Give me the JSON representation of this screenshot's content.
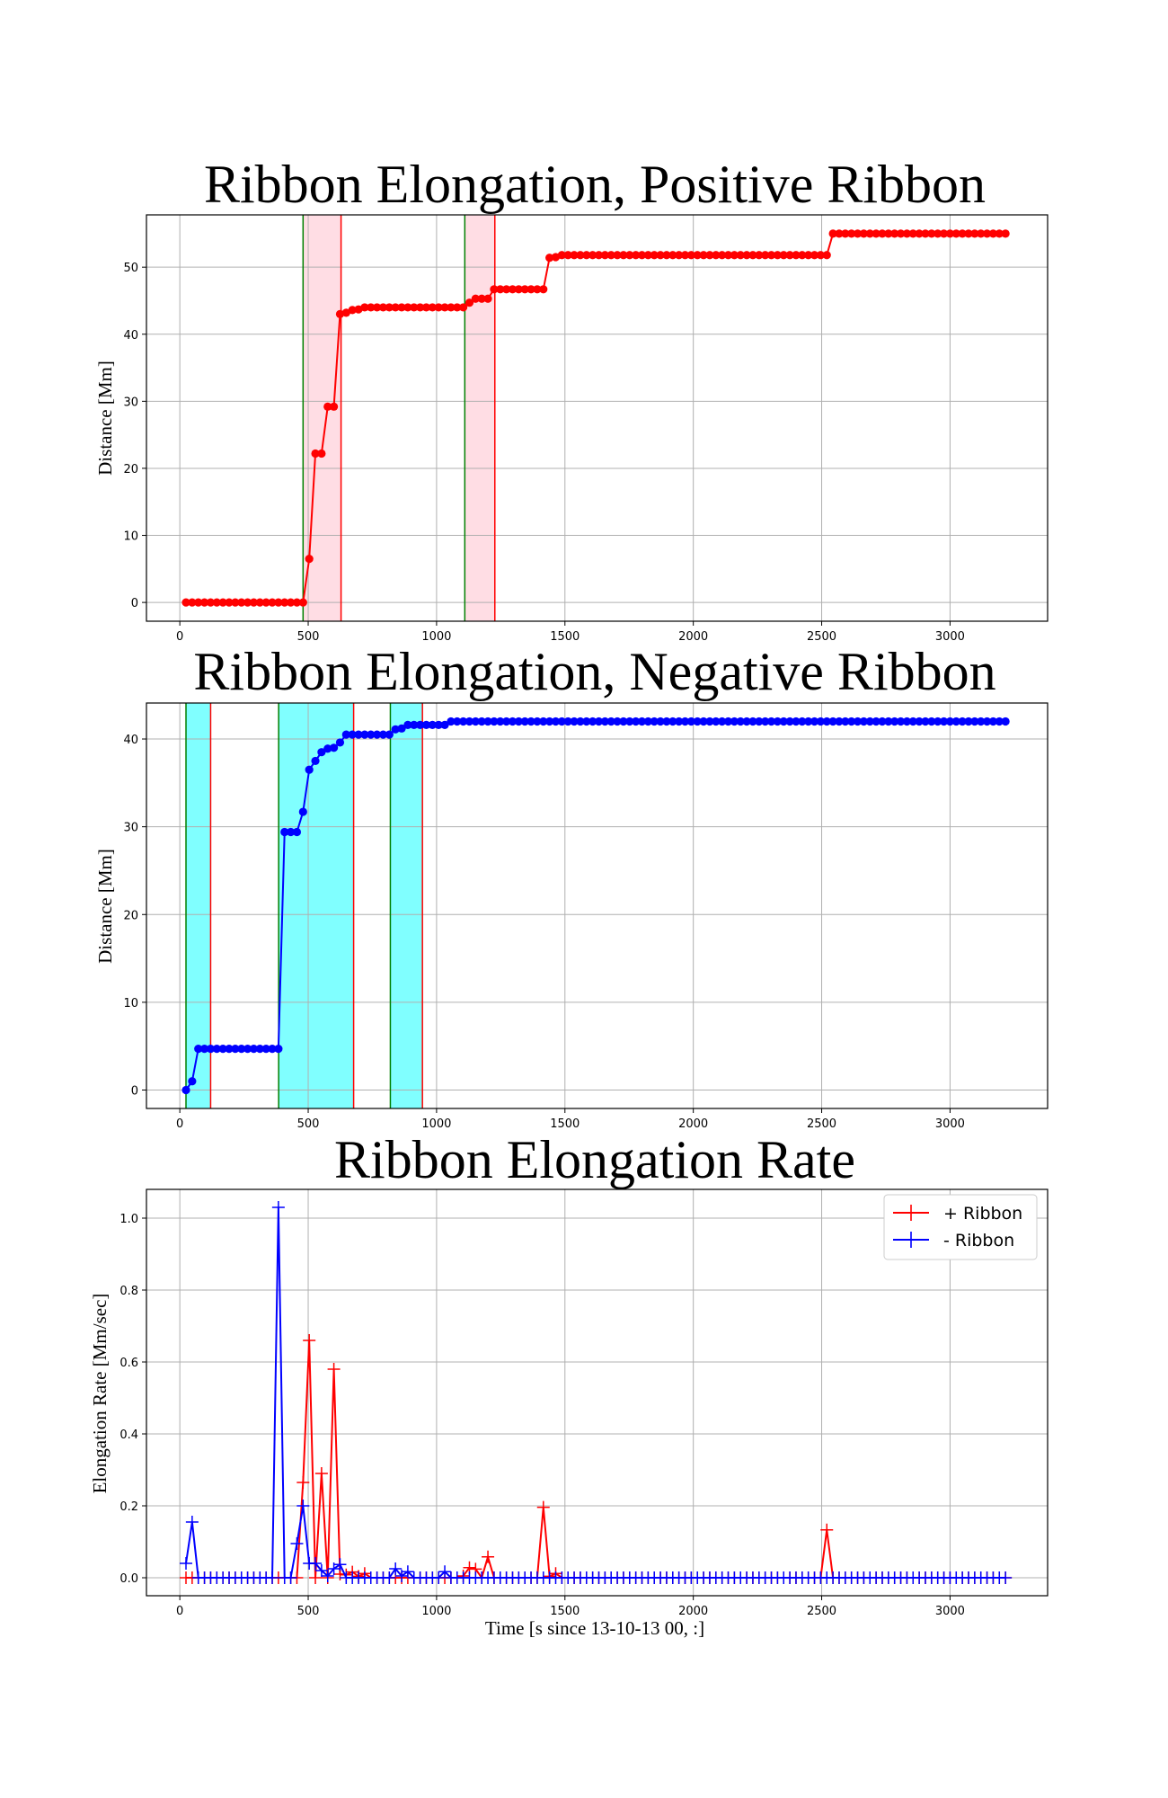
{
  "chart_data": [
    {
      "type": "line",
      "title": "Ribbon Elongation, Positive Ribbon",
      "xlabel": "",
      "ylabel": "Distance [Mm]",
      "xlim": [
        -130,
        3380
      ],
      "ylim": [
        -2.8,
        57.8
      ],
      "xticks": [
        0,
        500,
        1000,
        1500,
        2000,
        2500,
        3000
      ],
      "yticks": [
        0,
        10,
        20,
        30,
        40,
        50
      ],
      "grid": true,
      "series_color": "#ff0000",
      "marker": "circle",
      "bands": [
        {
          "start": 480,
          "end": 628,
          "fill": "#ffdde4",
          "start_line": "#008000",
          "end_line": "#ff0000"
        },
        {
          "start": 1110,
          "end": 1227,
          "fill": "#ffdde4",
          "start_line": "#008000",
          "end_line": "#ff0000"
        }
      ],
      "steps": [
        [
          24,
          0
        ],
        [
          456,
          0
        ],
        [
          480,
          0
        ],
        [
          504,
          6.5
        ],
        [
          528,
          22.2
        ],
        [
          552,
          22.2
        ],
        [
          576,
          29.2
        ],
        [
          600,
          29.2
        ],
        [
          624,
          43.0
        ],
        [
          648,
          43.2
        ],
        [
          672,
          43.6
        ],
        [
          696,
          43.7
        ],
        [
          720,
          44.0
        ],
        [
          1080,
          44.0
        ],
        [
          1104,
          44.0
        ],
        [
          1128,
          44.7
        ],
        [
          1152,
          45.3
        ],
        [
          1200,
          45.3
        ],
        [
          1224,
          46.7
        ],
        [
          1416,
          46.7
        ],
        [
          1440,
          51.4
        ],
        [
          1464,
          51.5
        ],
        [
          1488,
          51.8
        ],
        [
          2496,
          51.8
        ],
        [
          2520,
          51.8
        ],
        [
          2544,
          55.0
        ],
        [
          3216,
          55.0
        ]
      ]
    },
    {
      "type": "line",
      "title": "Ribbon Elongation, Negative Ribbon",
      "xlabel": "",
      "ylabel": "Distance [Mm]",
      "xlim": [
        -130,
        3380
      ],
      "ylim": [
        -2.1,
        44.1
      ],
      "xticks": [
        0,
        500,
        1000,
        1500,
        2000,
        2500,
        3000
      ],
      "yticks": [
        0,
        10,
        20,
        30,
        40
      ],
      "grid": true,
      "series_color": "#0000ff",
      "marker": "circle",
      "bands": [
        {
          "start": 24,
          "end": 120,
          "fill": "#80ffff",
          "start_line": "#008000",
          "end_line": "#ff0000"
        },
        {
          "start": 385,
          "end": 677,
          "fill": "#80ffff",
          "start_line": "#008000",
          "end_line": "#ff0000"
        },
        {
          "start": 820,
          "end": 945,
          "fill": "#80ffff",
          "start_line": "#008000",
          "end_line": "#ff0000"
        }
      ],
      "steps": [
        [
          24,
          0
        ],
        [
          48,
          1.0
        ],
        [
          72,
          4.7
        ],
        [
          360,
          4.7
        ],
        [
          384,
          4.7
        ],
        [
          408,
          29.4
        ],
        [
          456,
          29.4
        ],
        [
          480,
          31.7
        ],
        [
          504,
          36.5
        ],
        [
          528,
          37.5
        ],
        [
          552,
          38.5
        ],
        [
          576,
          38.9
        ],
        [
          600,
          39.0
        ],
        [
          624,
          39.6
        ],
        [
          648,
          40.5
        ],
        [
          816,
          40.5
        ],
        [
          840,
          41.1
        ],
        [
          864,
          41.2
        ],
        [
          888,
          41.6
        ],
        [
          1032,
          41.6
        ],
        [
          1056,
          42.0
        ],
        [
          3216,
          42.0
        ]
      ]
    },
    {
      "type": "line",
      "title": "Ribbon Elongation Rate",
      "xlabel": "Time [s since 13-10-13 00, :]",
      "ylabel": "Elongation Rate [Mm/sec]",
      "xlim": [
        -130,
        3380
      ],
      "ylim": [
        -0.05,
        1.08
      ],
      "xticks": [
        0,
        500,
        1000,
        1500,
        2000,
        2500,
        3000
      ],
      "yticks": [
        0.0,
        0.2,
        0.4,
        0.6,
        0.8,
        1.0
      ],
      "grid": true,
      "legend": "top-right",
      "marker": "plus",
      "series": [
        {
          "name": "+ Ribbon",
          "color": "#ff0000",
          "spikes": [
            [
              480,
              0.265
            ],
            [
              504,
              0.66
            ],
            [
              528,
              0
            ],
            [
              552,
              0.29
            ],
            [
              576,
              0
            ],
            [
              600,
              0.58
            ],
            [
              624,
              0.01
            ],
            [
              648,
              0.008
            ],
            [
              672,
              0.016
            ],
            [
              696,
              0.004
            ],
            [
              720,
              0.012
            ],
            [
              1104,
              0.005
            ],
            [
              1128,
              0.028
            ],
            [
              1152,
              0.024
            ],
            [
              1200,
              0.058
            ],
            [
              1416,
              0.196
            ],
            [
              1440,
              0.004
            ],
            [
              1464,
              0.012
            ],
            [
              2520,
              0.133
            ]
          ]
        },
        {
          "name": "- Ribbon",
          "color": "#0000ff",
          "spikes": [
            [
              24,
              0.04
            ],
            [
              48,
              0.155
            ],
            [
              384,
              1.03
            ],
            [
              456,
              0.095
            ],
            [
              480,
              0.2
            ],
            [
              504,
              0.04
            ],
            [
              528,
              0.04
            ],
            [
              552,
              0.02
            ],
            [
              576,
              0.005
            ],
            [
              600,
              0.025
            ],
            [
              624,
              0.037
            ],
            [
              840,
              0.025
            ],
            [
              864,
              0.005
            ],
            [
              888,
              0.017
            ],
            [
              1032,
              0.017
            ]
          ]
        }
      ]
    }
  ]
}
